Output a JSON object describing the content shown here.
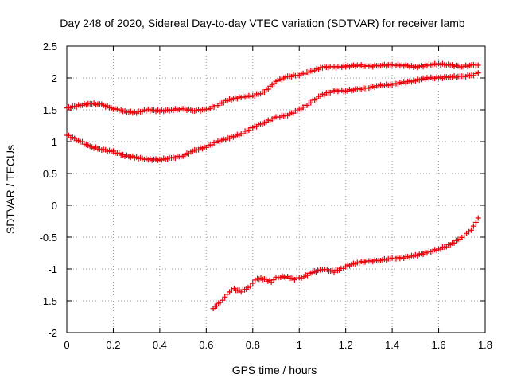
{
  "chart_data": {
    "type": "scatter",
    "title": "Day 248 of 2020, Sidereal Day-to-day VTEC variation (SDTVAR) for receiver lamb",
    "xlabel": "GPS time / hours",
    "ylabel": "SDTVAR / TECUs",
    "xlim": [
      0,
      1.8
    ],
    "ylim": [
      -2,
      2.5
    ],
    "x_ticks": [
      0,
      0.2,
      0.4,
      0.6,
      0.8,
      1,
      1.2,
      1.4,
      1.6,
      1.8
    ],
    "x_tick_labels": [
      "0",
      "0.2",
      "0.4",
      "0.6",
      "0.8",
      "1",
      "1.2",
      "1.4",
      "1.6",
      "1.8"
    ],
    "y_ticks": [
      -2,
      -1.5,
      -1,
      -0.5,
      0,
      0.5,
      1,
      1.5,
      2,
      2.5
    ],
    "y_tick_labels": [
      "-2",
      "-1.5",
      "-1",
      "-0.5",
      "0",
      "0.5",
      "1",
      "1.5",
      "2",
      "2.5"
    ],
    "grid": true,
    "legend": "none",
    "marker": "+",
    "marker_color": "#e8000b",
    "series": [
      {
        "name": "series-1",
        "x": [
          0,
          0.1,
          0.15,
          0.2,
          0.25,
          0.3,
          0.35,
          0.4,
          0.45,
          0.5,
          0.55,
          0.6,
          0.65,
          0.7,
          0.75,
          0.8,
          0.85,
          0.9,
          0.95,
          1.0,
          1.05,
          1.1,
          1.15,
          1.2,
          1.25,
          1.3,
          1.35,
          1.4,
          1.45,
          1.5,
          1.55,
          1.6,
          1.65,
          1.7,
          1.75,
          1.77
        ],
        "y": [
          1.53,
          1.6,
          1.58,
          1.52,
          1.47,
          1.46,
          1.5,
          1.48,
          1.5,
          1.51,
          1.49,
          1.5,
          1.58,
          1.66,
          1.7,
          1.72,
          1.78,
          1.95,
          2.02,
          2.05,
          2.1,
          2.17,
          2.17,
          2.18,
          2.2,
          2.18,
          2.2,
          2.2,
          2.2,
          2.17,
          2.2,
          2.22,
          2.2,
          2.18,
          2.2,
          2.2
        ]
      },
      {
        "name": "series-2",
        "x": [
          0,
          0.05,
          0.1,
          0.15,
          0.2,
          0.25,
          0.3,
          0.35,
          0.4,
          0.45,
          0.5,
          0.55,
          0.6,
          0.65,
          0.7,
          0.75,
          0.8,
          0.85,
          0.9,
          0.95,
          1.0,
          1.05,
          1.1,
          1.15,
          1.2,
          1.25,
          1.3,
          1.35,
          1.4,
          1.45,
          1.5,
          1.55,
          1.6,
          1.65,
          1.7,
          1.75,
          1.77
        ],
        "y": [
          1.1,
          1.02,
          0.92,
          0.88,
          0.84,
          0.78,
          0.75,
          0.72,
          0.72,
          0.74,
          0.78,
          0.86,
          0.92,
          1.0,
          1.06,
          1.12,
          1.22,
          1.3,
          1.38,
          1.42,
          1.5,
          1.62,
          1.74,
          1.8,
          1.8,
          1.82,
          1.85,
          1.88,
          1.9,
          1.93,
          1.96,
          2.0,
          2.0,
          2.02,
          2.02,
          2.05,
          2.08
        ]
      },
      {
        "name": "series-3",
        "x": [
          0.63,
          0.66,
          0.68,
          0.7,
          0.72,
          0.75,
          0.78,
          0.8,
          0.82,
          0.85,
          0.88,
          0.9,
          0.92,
          0.95,
          0.98,
          1.0,
          1.02,
          1.05,
          1.08,
          1.1,
          1.12,
          1.15,
          1.18,
          1.2,
          1.25,
          1.3,
          1.35,
          1.4,
          1.45,
          1.5,
          1.55,
          1.6,
          1.65,
          1.7,
          1.72,
          1.74,
          1.76,
          1.77
        ],
        "y": [
          -1.62,
          -1.52,
          -1.45,
          -1.35,
          -1.32,
          -1.35,
          -1.3,
          -1.22,
          -1.15,
          -1.16,
          -1.2,
          -1.14,
          -1.12,
          -1.13,
          -1.16,
          -1.14,
          -1.12,
          -1.06,
          -1.03,
          -1.0,
          -1.02,
          -1.04,
          -1.0,
          -0.96,
          -0.9,
          -0.88,
          -0.86,
          -0.84,
          -0.82,
          -0.79,
          -0.74,
          -0.69,
          -0.62,
          -0.5,
          -0.45,
          -0.38,
          -0.28,
          -0.2
        ]
      }
    ]
  }
}
